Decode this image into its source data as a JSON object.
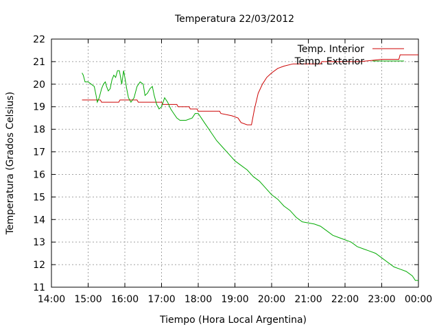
{
  "chart_data": {
    "type": "line",
    "title": "Temperatura 22/03/2012",
    "xlabel": "Tiempo (Hora Local Argentina)",
    "ylabel": "Temperatura (Grados Celsius)",
    "x_unit": "time of day (HH:MM)",
    "xlim": [
      "14:00",
      "00:00"
    ],
    "ylim": [
      11,
      22
    ],
    "x_ticks": [
      "14:00",
      "15:00",
      "16:00",
      "17:00",
      "18:00",
      "19:00",
      "20:00",
      "21:00",
      "22:00",
      "23:00",
      "00:00"
    ],
    "y_ticks": [
      11,
      12,
      13,
      14,
      15,
      16,
      17,
      18,
      19,
      20,
      21,
      22
    ],
    "grid": true,
    "legend_position": "top-right",
    "series": [
      {
        "name": "Temp. Interior",
        "color": "#cc0000",
        "points": [
          [
            "14:50",
            19.3
          ],
          [
            "15:20",
            19.3
          ],
          [
            "15:22",
            19.2
          ],
          [
            "15:50",
            19.2
          ],
          [
            "15:52",
            19.3
          ],
          [
            "16:20",
            19.3
          ],
          [
            "16:22",
            19.2
          ],
          [
            "17:00",
            19.2
          ],
          [
            "17:02",
            19.1
          ],
          [
            "17:25",
            19.1
          ],
          [
            "17:27",
            19.0
          ],
          [
            "17:45",
            19.0
          ],
          [
            "17:47",
            18.9
          ],
          [
            "17:58",
            18.9
          ],
          [
            "18:00",
            18.8
          ],
          [
            "18:35",
            18.8
          ],
          [
            "18:37",
            18.7
          ],
          [
            "18:55",
            18.6
          ],
          [
            "19:05",
            18.5
          ],
          [
            "19:10",
            18.3
          ],
          [
            "19:20",
            18.2
          ],
          [
            "19:27",
            18.2
          ],
          [
            "19:32",
            18.9
          ],
          [
            "19:38",
            19.6
          ],
          [
            "19:45",
            20.0
          ],
          [
            "19:52",
            20.3
          ],
          [
            "20:00",
            20.5
          ],
          [
            "20:10",
            20.7
          ],
          [
            "20:20",
            20.8
          ],
          [
            "20:35",
            20.9
          ],
          [
            "21:20",
            20.9
          ],
          [
            "21:22",
            21.0
          ],
          [
            "22:20",
            21.0
          ],
          [
            "22:25",
            21.0
          ],
          [
            "23:00",
            21.1
          ],
          [
            "23:28",
            21.1
          ],
          [
            "23:30",
            21.3
          ],
          [
            "00:00",
            21.3
          ]
        ]
      },
      {
        "name": "Temp. Exterior",
        "color": "#00aa00",
        "points": [
          [
            "14:50",
            20.5
          ],
          [
            "14:52",
            20.4
          ],
          [
            "14:55",
            20.1
          ],
          [
            "15:00",
            20.1
          ],
          [
            "15:05",
            20.0
          ],
          [
            "15:10",
            19.9
          ],
          [
            "15:13",
            19.5
          ],
          [
            "15:15",
            19.2
          ],
          [
            "15:18",
            19.4
          ],
          [
            "15:22",
            19.8
          ],
          [
            "15:25",
            20.0
          ],
          [
            "15:28",
            20.1
          ],
          [
            "15:30",
            19.9
          ],
          [
            "15:33",
            19.7
          ],
          [
            "15:36",
            19.8
          ],
          [
            "15:39",
            20.2
          ],
          [
            "15:42",
            20.4
          ],
          [
            "15:45",
            20.3
          ],
          [
            "15:48",
            20.6
          ],
          [
            "15:51",
            20.6
          ],
          [
            "15:53",
            20.3
          ],
          [
            "15:55",
            20.0
          ],
          [
            "15:58",
            20.6
          ],
          [
            "16:00",
            20.3
          ],
          [
            "16:03",
            19.8
          ],
          [
            "16:06",
            19.4
          ],
          [
            "16:10",
            19.2
          ],
          [
            "16:15",
            19.4
          ],
          [
            "16:20",
            19.9
          ],
          [
            "16:25",
            20.1
          ],
          [
            "16:30",
            20.0
          ],
          [
            "16:33",
            19.5
          ],
          [
            "16:37",
            19.6
          ],
          [
            "16:41",
            19.8
          ],
          [
            "16:45",
            19.9
          ],
          [
            "16:48",
            19.5
          ],
          [
            "16:52",
            19.1
          ],
          [
            "16:56",
            18.9
          ],
          [
            "17:00",
            19.0
          ],
          [
            "17:05",
            19.4
          ],
          [
            "17:10",
            19.2
          ],
          [
            "17:15",
            18.9
          ],
          [
            "17:20",
            18.7
          ],
          [
            "17:25",
            18.5
          ],
          [
            "17:30",
            18.4
          ],
          [
            "17:40",
            18.4
          ],
          [
            "17:50",
            18.5
          ],
          [
            "17:55",
            18.7
          ],
          [
            "18:00",
            18.7
          ],
          [
            "18:05",
            18.5
          ],
          [
            "18:10",
            18.3
          ],
          [
            "18:15",
            18.1
          ],
          [
            "18:20",
            17.9
          ],
          [
            "18:25",
            17.7
          ],
          [
            "18:30",
            17.5
          ],
          [
            "18:40",
            17.2
          ],
          [
            "18:50",
            16.9
          ],
          [
            "19:00",
            16.6
          ],
          [
            "19:10",
            16.4
          ],
          [
            "19:20",
            16.2
          ],
          [
            "19:30",
            15.9
          ],
          [
            "19:40",
            15.7
          ],
          [
            "19:50",
            15.4
          ],
          [
            "20:00",
            15.1
          ],
          [
            "20:10",
            14.9
          ],
          [
            "20:20",
            14.6
          ],
          [
            "20:30",
            14.4
          ],
          [
            "20:40",
            14.1
          ],
          [
            "20:50",
            13.9
          ],
          [
            "21:00",
            13.85
          ],
          [
            "21:10",
            13.8
          ],
          [
            "21:20",
            13.7
          ],
          [
            "21:30",
            13.5
          ],
          [
            "21:40",
            13.3
          ],
          [
            "21:50",
            13.2
          ],
          [
            "22:00",
            13.1
          ],
          [
            "22:10",
            13.0
          ],
          [
            "22:20",
            12.8
          ],
          [
            "22:30",
            12.7
          ],
          [
            "22:40",
            12.6
          ],
          [
            "22:50",
            12.5
          ],
          [
            "23:00",
            12.3
          ],
          [
            "23:10",
            12.1
          ],
          [
            "23:20",
            11.9
          ],
          [
            "23:30",
            11.8
          ],
          [
            "23:40",
            11.7
          ],
          [
            "23:50",
            11.5
          ],
          [
            "23:55",
            11.3
          ],
          [
            "00:00",
            11.3
          ]
        ]
      }
    ]
  }
}
